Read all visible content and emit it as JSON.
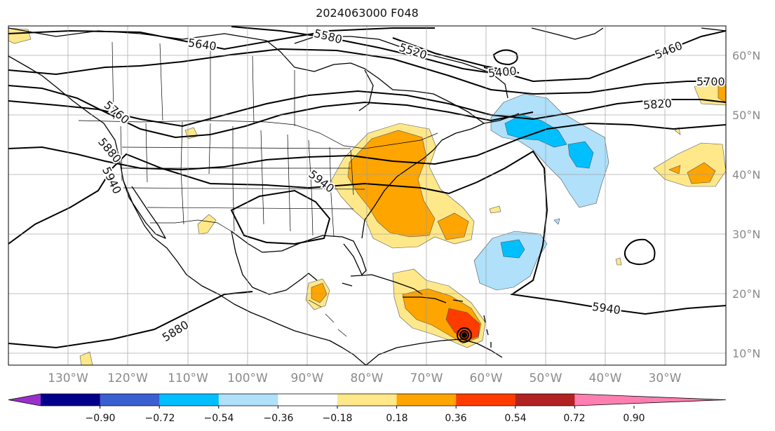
{
  "title": "2024063000 F048",
  "lat_labels": [
    "60°N",
    "50°N",
    "40°N",
    "30°N",
    "20°N",
    "10°N"
  ],
  "lon_labels": [
    "130°W",
    "120°W",
    "110°W",
    "100°W",
    "90°W",
    "80°W",
    "70°W",
    "60°W",
    "50°W",
    "40°W",
    "30°W"
  ],
  "contour_labels": [
    "5640",
    "5580",
    "5520",
    "5460",
    "5400",
    "5700",
    "5820",
    "5760",
    "5880",
    "5940",
    "5940",
    "5940",
    "5880"
  ],
  "colorbar": {
    "ticks": [
      "−0.90",
      "−0.72",
      "−0.54",
      "−0.36",
      "−0.18",
      "0.18",
      "0.36",
      "0.54",
      "0.72",
      "0.90"
    ],
    "colors": [
      "#9a30cc",
      "#00008b",
      "#3a5fd0",
      "#00bfff",
      "#b0e0fa",
      "#ffffff",
      "#ffe88a",
      "#ffa500",
      "#ff3c00",
      "#b22222",
      "#ff80b0"
    ]
  }
}
